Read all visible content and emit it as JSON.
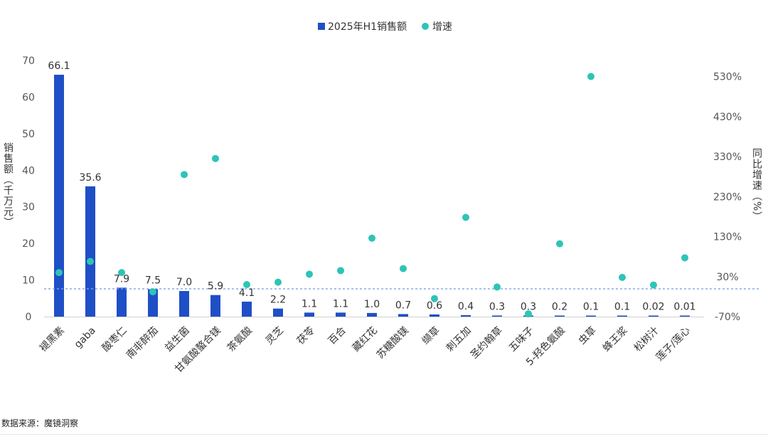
{
  "chart_data": {
    "type": "bar",
    "title": "",
    "legend": [
      {
        "label": "2025年H1销售额",
        "shape": "square",
        "color": "#1f4fc6"
      },
      {
        "label": "增速",
        "shape": "circle",
        "color": "#2ec4b6"
      }
    ],
    "legend_position": "top-center",
    "categories": [
      "褪黑素",
      "gaba",
      "酸枣仁",
      "南非醉茄",
      "益生菌",
      "甘氨酸螯合镁",
      "茶氨酸",
      "灵芝",
      "茯苓",
      "百合",
      "藏红花",
      "苏糖酸镁",
      "缬草",
      "刺五加",
      "圣约翰草",
      "五味子",
      "5-羟色氨酸",
      "虫草",
      "蜂王浆",
      "松树汁",
      "莲子/莲心"
    ],
    "series": [
      {
        "name": "2025年H1销售额",
        "type": "bar",
        "axis": "left",
        "color": "#1f4fc6",
        "values": [
          66.1,
          35.6,
          7.9,
          7.5,
          7.0,
          5.9,
          4.1,
          2.2,
          1.1,
          1.1,
          1.0,
          0.7,
          0.6,
          0.4,
          0.3,
          0.3,
          0.2,
          0.1,
          0.1,
          0.02,
          0.01
        ],
        "labels": [
          "66.1",
          "35.6",
          "7.9",
          "7.5",
          "7.0",
          "5.9",
          "4.1",
          "2.2",
          "1.1",
          "1.1",
          "1.0",
          "0.7",
          "0.6",
          "0.4",
          "0.3",
          "0.3",
          "0.2",
          "0.1",
          "0.1",
          "0.02",
          "0.01"
        ]
      },
      {
        "name": "增速",
        "type": "scatter",
        "axis": "right",
        "color": "#2ec4b6",
        "values": [
          40,
          68,
          40,
          -8,
          285,
          325,
          10,
          16,
          36,
          45,
          126,
          50,
          -25,
          178,
          4,
          -63,
          112,
          530,
          28,
          9,
          77
        ]
      }
    ],
    "ylabel_left": "销售额（千万元）",
    "ylabel_right": "同比增速（%）",
    "ylim_left": [
      0,
      70
    ],
    "yticks_left": [
      "0",
      "10",
      "20",
      "30",
      "40",
      "50",
      "60",
      "70"
    ],
    "ylim_right": [
      -70,
      570
    ],
    "yticks_right": [
      "-70%",
      "30%",
      "130%",
      "230%",
      "330%",
      "430%",
      "530%"
    ],
    "yticks_right_values": [
      -70,
      30,
      130,
      230,
      330,
      430,
      530
    ],
    "reference_line": {
      "axis": "left",
      "value": 7.6,
      "style": "dashed",
      "color": "#7fa3e6"
    },
    "grid": false
  },
  "source_note": "数据来源：魔镜洞察"
}
